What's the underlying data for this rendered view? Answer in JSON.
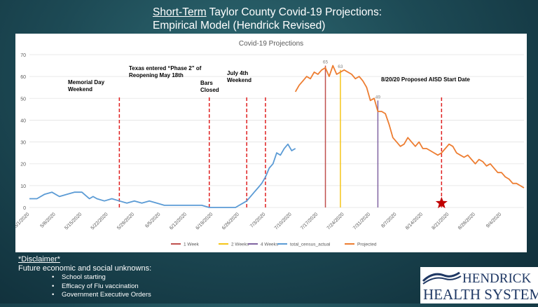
{
  "slide": {
    "title_underlined": "Short-Term",
    "title_rest": " Taylor County Covid-19 Projections:",
    "subtitle": "Empirical Model (Hendrick Revised)"
  },
  "chart_data": {
    "type": "line",
    "title": "Covid-19 Projections",
    "ylim": [
      0,
      70
    ],
    "yticks": [
      0,
      10,
      20,
      30,
      40,
      50,
      60,
      70
    ],
    "xlim": [
      0,
      132
    ],
    "x_tick_labels": [
      "5/1/2020",
      "5/8/2020",
      "5/15/2020",
      "5/22/2020",
      "5/29/2020",
      "6/5/2020",
      "6/12/2020",
      "6/19/2020",
      "6/26/2020",
      "7/3/2020",
      "7/10/2020",
      "7/17/2020",
      "7/24/2020",
      "7/31/2020",
      "8/7/2020",
      "8/14/2020",
      "8/21/2020",
      "8/28/2020",
      "9/4/2020",
      "9/11/2020",
      "9/18/2020",
      "9/25/2020"
    ],
    "x_tick_offsets_days": [
      0,
      7,
      14,
      21,
      28,
      35,
      42,
      49,
      56,
      63,
      70,
      77,
      84,
      91,
      98,
      105,
      112,
      119,
      126,
      133,
      140,
      147
    ],
    "series": [
      {
        "name": "total_census_actual",
        "color": "#5b9bd5",
        "x": [
          0,
          2,
          4,
          6,
          8,
          10,
          12,
          14,
          16,
          17,
          18,
          20,
          22,
          24,
          26,
          28,
          30,
          32,
          34,
          36,
          38,
          40,
          42,
          44,
          46,
          48,
          50,
          51,
          52,
          53,
          54,
          55,
          56,
          57,
          58,
          59,
          60,
          61,
          62,
          63,
          64,
          65,
          66,
          67,
          68,
          69,
          70,
          71
        ],
        "y": [
          4,
          4,
          6,
          7,
          5,
          6,
          7,
          7,
          4,
          5,
          4,
          3,
          4,
          3,
          2,
          3,
          2,
          3,
          2,
          1,
          1,
          1,
          1,
          1,
          1,
          0,
          0,
          0,
          0,
          0,
          0,
          0,
          1,
          2,
          3,
          5,
          7,
          9,
          11,
          14,
          18,
          20,
          25,
          24,
          27,
          29,
          26,
          27
        ]
      },
      {
        "name": "Projected",
        "color": "#ed7d31",
        "x": [
          71,
          72,
          73,
          74,
          75,
          76,
          77,
          78,
          79,
          80,
          81,
          82,
          83,
          84,
          85,
          86,
          87,
          88,
          89,
          90,
          91,
          92,
          93,
          94,
          95,
          96,
          97,
          98,
          99,
          100,
          101,
          102,
          103,
          104,
          105,
          106,
          107,
          108,
          109,
          110,
          111,
          112,
          113,
          114,
          115,
          116,
          117,
          118,
          119,
          120,
          121,
          122,
          123,
          124,
          125,
          126,
          127,
          128,
          129,
          130,
          131,
          132
        ],
        "y": [
          53,
          56,
          58,
          60,
          59,
          62,
          61,
          63,
          64,
          60,
          65,
          61,
          62,
          63,
          62,
          61,
          59,
          60,
          58,
          55,
          49,
          50,
          44,
          44,
          43,
          38,
          32,
          30,
          28,
          29,
          32,
          30,
          28,
          30,
          27,
          27,
          26,
          25,
          24,
          25,
          27,
          29,
          28,
          25,
          24,
          23,
          24,
          22,
          20,
          22,
          21,
          19,
          20,
          18,
          16,
          16,
          14,
          13,
          11,
          11,
          10,
          9
        ]
      }
    ],
    "vertical_markers": [
      {
        "label": "Memorial Day\nWeekend",
        "x": 24,
        "color": "#e02020",
        "style": "dashed"
      },
      {
        "label": "Texas entered “Phase 2” of\nReopening May 18th",
        "x": 48,
        "color": "#e02020",
        "style": "dashed"
      },
      {
        "label": "Bars\nClosed",
        "x": 58,
        "color": "#e02020",
        "style": "dashed"
      },
      {
        "label": "July 4th\nWeekend",
        "x": 63,
        "color": "#e02020",
        "style": "dashed"
      },
      {
        "label": "8/20/20 Proposed AISD Start Date",
        "x": 110,
        "color": "#e02020",
        "style": "dashed"
      }
    ],
    "projection_lines": [
      {
        "name": "1 Week",
        "x": 79,
        "value": 65,
        "color": "#c0504d"
      },
      {
        "name": "2 Weeks",
        "x": 83,
        "value": 63,
        "color": "#f5c518"
      },
      {
        "name": "4 Weeks",
        "x": 93,
        "value": 49,
        "color": "#8064a2"
      }
    ],
    "star_marker": {
      "x": 110,
      "y": 2,
      "color": "#c00000"
    },
    "legend_position": "bottom",
    "legend": [
      "1 Week",
      "2 Weeks",
      "4 Weeks",
      "total_census_actual",
      "Projected"
    ],
    "grid": "horizontal"
  },
  "disclaimer": {
    "heading": "*Disclaimer*",
    "intro": "Future economic and social unknowns:",
    "items": [
      "School starting",
      "Efficacy of Flu vaccination",
      "Government Executive Orders"
    ]
  },
  "logo": {
    "line1": "HENDRICK",
    "line2": "HEALTH SYSTEM",
    "color": "#1f3864"
  }
}
